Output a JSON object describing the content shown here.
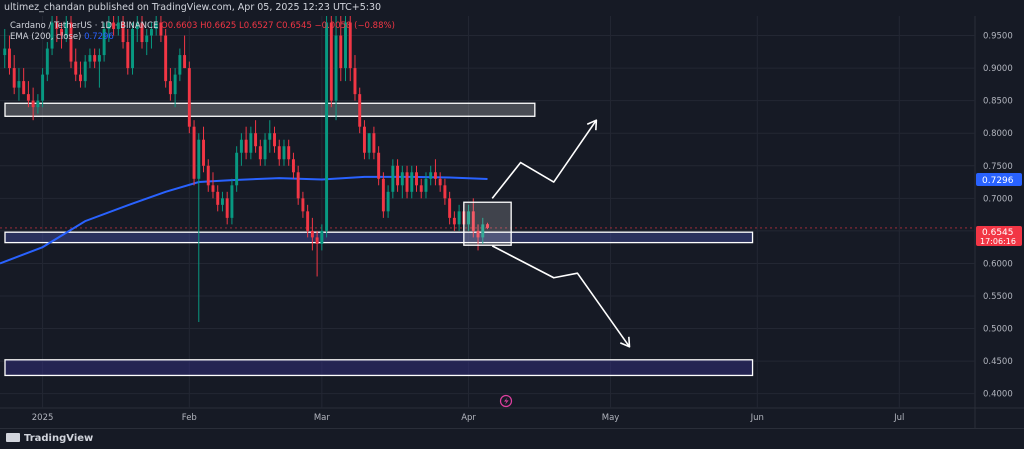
{
  "header": {
    "published": "ultimez_chandan published on TradingView.com, Apr 05, 2025 12:23 UTC+5:30"
  },
  "legend": {
    "symbol": "Cardano / TetherUS · 1D · BINANCE",
    "ohlc": "O0.6603 H0.6625 L0.6527 C0.6545 −0.0058 (−0.88%)",
    "ema_label": "EMA (200, close)",
    "ema_value": "0.7296"
  },
  "price_labels": {
    "current_price": "0.6545",
    "countdown": "17:06:16",
    "ema_price": "0.7296"
  },
  "footer": {
    "brand": "TradingView"
  },
  "colors": {
    "background": "#161a25",
    "grid": "#232733",
    "up": "#089981",
    "down": "#f23645",
    "ema": "#2962ff",
    "zone_border": "#ffffff"
  },
  "chart_data": {
    "type": "candlestick",
    "symbol": "Cardano / TetherUS",
    "timeframe": "1D",
    "exchange": "BINANCE",
    "y_ticks": [
      0.95,
      0.9,
      0.85,
      0.8,
      0.75,
      0.7,
      0.65,
      0.6,
      0.55,
      0.5,
      0.45,
      0.4
    ],
    "y_tick_labels": [
      "0.9500",
      "0.9000",
      "0.8500",
      "0.8000",
      "0.7500",
      "0.7000",
      "0.6500",
      "0.6000",
      "0.5500",
      "0.5000",
      "0.4500",
      "0.4000"
    ],
    "ylim": [
      0.378,
      0.98
    ],
    "x_ticks": [
      "2025",
      "Feb",
      "Mar",
      "Apr",
      "May",
      "Jun",
      "Jul"
    ],
    "x_tick_dates": [
      "2025-01-01",
      "2025-02-01",
      "2025-03-01",
      "2025-04-01",
      "2025-05-01",
      "2025-06-01",
      "2025-07-01"
    ],
    "xlim": [
      "2024-12-23",
      "2025-07-17"
    ],
    "candles": [
      {
        "date": "2024-12-24",
        "o": 0.92,
        "h": 0.96,
        "l": 0.9,
        "c": 0.93
      },
      {
        "date": "2024-12-25",
        "o": 0.93,
        "h": 0.95,
        "l": 0.89,
        "c": 0.9
      },
      {
        "date": "2024-12-26",
        "o": 0.9,
        "h": 0.92,
        "l": 0.86,
        "c": 0.87
      },
      {
        "date": "2024-12-27",
        "o": 0.87,
        "h": 0.9,
        "l": 0.85,
        "c": 0.88
      },
      {
        "date": "2024-12-28",
        "o": 0.88,
        "h": 0.9,
        "l": 0.86,
        "c": 0.86
      },
      {
        "date": "2024-12-29",
        "o": 0.86,
        "h": 0.88,
        "l": 0.84,
        "c": 0.85
      },
      {
        "date": "2024-12-30",
        "o": 0.85,
        "h": 0.87,
        "l": 0.82,
        "c": 0.84
      },
      {
        "date": "2024-12-31",
        "o": 0.84,
        "h": 0.86,
        "l": 0.83,
        "c": 0.85
      },
      {
        "date": "2025-01-01",
        "o": 0.85,
        "h": 0.9,
        "l": 0.84,
        "c": 0.89
      },
      {
        "date": "2025-01-02",
        "o": 0.89,
        "h": 0.94,
        "l": 0.88,
        "c": 0.93
      },
      {
        "date": "2025-01-03",
        "o": 0.93,
        "h": 0.98,
        "l": 0.92,
        "c": 0.97
      },
      {
        "date": "2025-01-04",
        "o": 0.97,
        "h": 0.98,
        "l": 0.94,
        "c": 0.96
      },
      {
        "date": "2025-01-05",
        "o": 0.96,
        "h": 0.97,
        "l": 0.93,
        "c": 0.95
      },
      {
        "date": "2025-01-06",
        "o": 0.95,
        "h": 0.98,
        "l": 0.94,
        "c": 0.97
      },
      {
        "date": "2025-01-07",
        "o": 0.97,
        "h": 0.98,
        "l": 0.9,
        "c": 0.91
      },
      {
        "date": "2025-01-08",
        "o": 0.91,
        "h": 0.93,
        "l": 0.88,
        "c": 0.89
      },
      {
        "date": "2025-01-09",
        "o": 0.89,
        "h": 0.91,
        "l": 0.87,
        "c": 0.88
      },
      {
        "date": "2025-01-10",
        "o": 0.88,
        "h": 0.92,
        "l": 0.87,
        "c": 0.91
      },
      {
        "date": "2025-01-11",
        "o": 0.91,
        "h": 0.93,
        "l": 0.9,
        "c": 0.92
      },
      {
        "date": "2025-01-12",
        "o": 0.92,
        "h": 0.93,
        "l": 0.9,
        "c": 0.91
      },
      {
        "date": "2025-01-13",
        "o": 0.91,
        "h": 0.93,
        "l": 0.87,
        "c": 0.92
      },
      {
        "date": "2025-01-14",
        "o": 0.92,
        "h": 0.97,
        "l": 0.91,
        "c": 0.96
      },
      {
        "date": "2025-01-15",
        "o": 0.96,
        "h": 0.98,
        "l": 0.94,
        "c": 0.97
      },
      {
        "date": "2025-01-16",
        "o": 0.97,
        "h": 0.98,
        "l": 0.95,
        "c": 0.96
      },
      {
        "date": "2025-01-17",
        "o": 0.96,
        "h": 0.98,
        "l": 0.95,
        "c": 0.97
      },
      {
        "date": "2025-01-18",
        "o": 0.97,
        "h": 0.98,
        "l": 0.93,
        "c": 0.94
      },
      {
        "date": "2025-01-19",
        "o": 0.94,
        "h": 0.96,
        "l": 0.89,
        "c": 0.9
      },
      {
        "date": "2025-01-20",
        "o": 0.9,
        "h": 0.97,
        "l": 0.89,
        "c": 0.96
      },
      {
        "date": "2025-01-21",
        "o": 0.96,
        "h": 0.98,
        "l": 0.94,
        "c": 0.97
      },
      {
        "date": "2025-01-22",
        "o": 0.97,
        "h": 0.98,
        "l": 0.93,
        "c": 0.94
      },
      {
        "date": "2025-01-23",
        "o": 0.94,
        "h": 0.96,
        "l": 0.92,
        "c": 0.95
      },
      {
        "date": "2025-01-24",
        "o": 0.95,
        "h": 0.97,
        "l": 0.93,
        "c": 0.96
      },
      {
        "date": "2025-01-25",
        "o": 0.96,
        "h": 0.98,
        "l": 0.95,
        "c": 0.97
      },
      {
        "date": "2025-01-26",
        "o": 0.97,
        "h": 0.98,
        "l": 0.94,
        "c": 0.95
      },
      {
        "date": "2025-01-27",
        "o": 0.95,
        "h": 0.96,
        "l": 0.87,
        "c": 0.88
      },
      {
        "date": "2025-01-28",
        "o": 0.88,
        "h": 0.9,
        "l": 0.85,
        "c": 0.86
      },
      {
        "date": "2025-01-29",
        "o": 0.86,
        "h": 0.9,
        "l": 0.84,
        "c": 0.89
      },
      {
        "date": "2025-01-30",
        "o": 0.89,
        "h": 0.93,
        "l": 0.88,
        "c": 0.92
      },
      {
        "date": "2025-01-31",
        "o": 0.92,
        "h": 0.95,
        "l": 0.9,
        "c": 0.9
      },
      {
        "date": "2025-02-01",
        "o": 0.9,
        "h": 0.91,
        "l": 0.8,
        "c": 0.81
      },
      {
        "date": "2025-02-02",
        "o": 0.81,
        "h": 0.82,
        "l": 0.72,
        "c": 0.73
      },
      {
        "date": "2025-02-03",
        "o": 0.73,
        "h": 0.8,
        "l": 0.51,
        "c": 0.79
      },
      {
        "date": "2025-02-04",
        "o": 0.79,
        "h": 0.81,
        "l": 0.74,
        "c": 0.75
      },
      {
        "date": "2025-02-05",
        "o": 0.75,
        "h": 0.76,
        "l": 0.71,
        "c": 0.72
      },
      {
        "date": "2025-02-06",
        "o": 0.72,
        "h": 0.74,
        "l": 0.7,
        "c": 0.71
      },
      {
        "date": "2025-02-07",
        "o": 0.71,
        "h": 0.72,
        "l": 0.68,
        "c": 0.69
      },
      {
        "date": "2025-02-08",
        "o": 0.69,
        "h": 0.71,
        "l": 0.68,
        "c": 0.7
      },
      {
        "date": "2025-02-09",
        "o": 0.7,
        "h": 0.71,
        "l": 0.66,
        "c": 0.67
      },
      {
        "date": "2025-02-10",
        "o": 0.67,
        "h": 0.73,
        "l": 0.66,
        "c": 0.72
      },
      {
        "date": "2025-02-11",
        "o": 0.72,
        "h": 0.78,
        "l": 0.71,
        "c": 0.77
      },
      {
        "date": "2025-02-12",
        "o": 0.77,
        "h": 0.8,
        "l": 0.75,
        "c": 0.79
      },
      {
        "date": "2025-02-13",
        "o": 0.79,
        "h": 0.81,
        "l": 0.76,
        "c": 0.77
      },
      {
        "date": "2025-02-14",
        "o": 0.77,
        "h": 0.81,
        "l": 0.76,
        "c": 0.8
      },
      {
        "date": "2025-02-15",
        "o": 0.8,
        "h": 0.82,
        "l": 0.77,
        "c": 0.78
      },
      {
        "date": "2025-02-16",
        "o": 0.78,
        "h": 0.79,
        "l": 0.75,
        "c": 0.76
      },
      {
        "date": "2025-02-17",
        "o": 0.76,
        "h": 0.8,
        "l": 0.75,
        "c": 0.79
      },
      {
        "date": "2025-02-18",
        "o": 0.79,
        "h": 0.82,
        "l": 0.77,
        "c": 0.8
      },
      {
        "date": "2025-02-19",
        "o": 0.8,
        "h": 0.81,
        "l": 0.77,
        "c": 0.78
      },
      {
        "date": "2025-02-20",
        "o": 0.78,
        "h": 0.79,
        "l": 0.75,
        "c": 0.76
      },
      {
        "date": "2025-02-21",
        "o": 0.76,
        "h": 0.79,
        "l": 0.75,
        "c": 0.78
      },
      {
        "date": "2025-02-22",
        "o": 0.78,
        "h": 0.79,
        "l": 0.75,
        "c": 0.76
      },
      {
        "date": "2025-02-23",
        "o": 0.76,
        "h": 0.77,
        "l": 0.73,
        "c": 0.74
      },
      {
        "date": "2025-02-24",
        "o": 0.74,
        "h": 0.75,
        "l": 0.69,
        "c": 0.7
      },
      {
        "date": "2025-02-25",
        "o": 0.7,
        "h": 0.71,
        "l": 0.67,
        "c": 0.68
      },
      {
        "date": "2025-02-26",
        "o": 0.68,
        "h": 0.69,
        "l": 0.64,
        "c": 0.65
      },
      {
        "date": "2025-02-27",
        "o": 0.65,
        "h": 0.67,
        "l": 0.62,
        "c": 0.64
      },
      {
        "date": "2025-02-28",
        "o": 0.64,
        "h": 0.65,
        "l": 0.58,
        "c": 0.63
      },
      {
        "date": "2025-03-01",
        "o": 0.63,
        "h": 0.66,
        "l": 0.62,
        "c": 0.65
      },
      {
        "date": "2025-03-02",
        "o": 0.65,
        "h": 0.98,
        "l": 0.64,
        "c": 0.97
      },
      {
        "date": "2025-03-03",
        "o": 0.97,
        "h": 0.98,
        "l": 0.84,
        "c": 0.85
      },
      {
        "date": "2025-03-04",
        "o": 0.85,
        "h": 0.98,
        "l": 0.82,
        "c": 0.95
      },
      {
        "date": "2025-03-05",
        "o": 0.95,
        "h": 0.98,
        "l": 0.88,
        "c": 0.9
      },
      {
        "date": "2025-03-06",
        "o": 0.9,
        "h": 0.98,
        "l": 0.88,
        "c": 0.97
      },
      {
        "date": "2025-03-07",
        "o": 0.97,
        "h": 0.98,
        "l": 0.88,
        "c": 0.9
      },
      {
        "date": "2025-03-08",
        "o": 0.9,
        "h": 0.92,
        "l": 0.85,
        "c": 0.86
      },
      {
        "date": "2025-03-09",
        "o": 0.86,
        "h": 0.87,
        "l": 0.8,
        "c": 0.81
      },
      {
        "date": "2025-03-10",
        "o": 0.81,
        "h": 0.82,
        "l": 0.76,
        "c": 0.77
      },
      {
        "date": "2025-03-11",
        "o": 0.77,
        "h": 0.8,
        "l": 0.76,
        "c": 0.8
      },
      {
        "date": "2025-03-12",
        "o": 0.8,
        "h": 0.81,
        "l": 0.76,
        "c": 0.77
      },
      {
        "date": "2025-03-13",
        "o": 0.77,
        "h": 0.78,
        "l": 0.72,
        "c": 0.73
      },
      {
        "date": "2025-03-14",
        "o": 0.73,
        "h": 0.74,
        "l": 0.67,
        "c": 0.68
      },
      {
        "date": "2025-03-15",
        "o": 0.68,
        "h": 0.72,
        "l": 0.67,
        "c": 0.71
      },
      {
        "date": "2025-03-16",
        "o": 0.71,
        "h": 0.76,
        "l": 0.7,
        "c": 0.75
      },
      {
        "date": "2025-03-17",
        "o": 0.75,
        "h": 0.76,
        "l": 0.71,
        "c": 0.72
      },
      {
        "date": "2025-03-18",
        "o": 0.72,
        "h": 0.75,
        "l": 0.7,
        "c": 0.74
      },
      {
        "date": "2025-03-19",
        "o": 0.74,
        "h": 0.75,
        "l": 0.7,
        "c": 0.71
      },
      {
        "date": "2025-03-20",
        "o": 0.71,
        "h": 0.75,
        "l": 0.7,
        "c": 0.74
      },
      {
        "date": "2025-03-21",
        "o": 0.74,
        "h": 0.75,
        "l": 0.71,
        "c": 0.72
      },
      {
        "date": "2025-03-22",
        "o": 0.72,
        "h": 0.73,
        "l": 0.7,
        "c": 0.71
      },
      {
        "date": "2025-03-23",
        "o": 0.71,
        "h": 0.74,
        "l": 0.7,
        "c": 0.73
      },
      {
        "date": "2025-03-24",
        "o": 0.73,
        "h": 0.75,
        "l": 0.72,
        "c": 0.74
      },
      {
        "date": "2025-03-25",
        "o": 0.74,
        "h": 0.76,
        "l": 0.72,
        "c": 0.73
      },
      {
        "date": "2025-03-26",
        "o": 0.73,
        "h": 0.74,
        "l": 0.71,
        "c": 0.72
      },
      {
        "date": "2025-03-27",
        "o": 0.72,
        "h": 0.73,
        "l": 0.69,
        "c": 0.7
      },
      {
        "date": "2025-03-28",
        "o": 0.7,
        "h": 0.71,
        "l": 0.66,
        "c": 0.67
      },
      {
        "date": "2025-03-29",
        "o": 0.67,
        "h": 0.68,
        "l": 0.65,
        "c": 0.66
      },
      {
        "date": "2025-03-30",
        "o": 0.66,
        "h": 0.69,
        "l": 0.65,
        "c": 0.68
      },
      {
        "date": "2025-03-31",
        "o": 0.68,
        "h": 0.69,
        "l": 0.65,
        "c": 0.66
      },
      {
        "date": "2025-04-01",
        "o": 0.66,
        "h": 0.69,
        "l": 0.65,
        "c": 0.68
      },
      {
        "date": "2025-04-02",
        "o": 0.68,
        "h": 0.7,
        "l": 0.64,
        "c": 0.65
      },
      {
        "date": "2025-04-03",
        "o": 0.65,
        "h": 0.66,
        "l": 0.62,
        "c": 0.64
      },
      {
        "date": "2025-04-04",
        "o": 0.64,
        "h": 0.67,
        "l": 0.63,
        "c": 0.66
      },
      {
        "date": "2025-04-05",
        "o": 0.6603,
        "h": 0.6625,
        "l": 0.6527,
        "c": 0.6545
      }
    ],
    "ema": {
      "name": "EMA (200, close)",
      "points": [
        {
          "date": "2024-12-23",
          "v": 0.6
        },
        {
          "date": "2025-01-01",
          "v": 0.625
        },
        {
          "date": "2025-01-10",
          "v": 0.665
        },
        {
          "date": "2025-01-20",
          "v": 0.692
        },
        {
          "date": "2025-01-27",
          "v": 0.71
        },
        {
          "date": "2025-02-03",
          "v": 0.725
        },
        {
          "date": "2025-02-10",
          "v": 0.728
        },
        {
          "date": "2025-02-20",
          "v": 0.731
        },
        {
          "date": "2025-03-01",
          "v": 0.729
        },
        {
          "date": "2025-03-10",
          "v": 0.733
        },
        {
          "date": "2025-03-20",
          "v": 0.733
        },
        {
          "date": "2025-03-28",
          "v": 0.732
        },
        {
          "date": "2025-04-05",
          "v": 0.7296
        }
      ]
    },
    "zones": [
      {
        "name": "resistance-zone",
        "date_from": "2024-12-23",
        "date_to": "2025-04-15",
        "y_bottom": 0.826,
        "y_top": 0.846
      },
      {
        "name": "support-zone",
        "date_from": "2024-12-23",
        "date_to": "2025-05-31",
        "y_bottom": 0.632,
        "y_top": 0.648
      },
      {
        "name": "target-zone",
        "date_from": "2024-12-23",
        "date_to": "2025-05-31",
        "y_bottom": 0.428,
        "y_top": 0.452
      },
      {
        "name": "consolidation-box",
        "date_from": "2025-03-31",
        "date_to": "2025-04-10",
        "y_bottom": 0.628,
        "y_top": 0.694
      }
    ],
    "arrows": [
      {
        "name": "bullish-arrow",
        "points": [
          [
            "2025-04-06",
            0.7
          ],
          [
            "2025-04-12",
            0.755
          ],
          [
            "2025-04-19",
            0.725
          ],
          [
            "2025-04-28",
            0.82
          ]
        ]
      },
      {
        "name": "bearish-arrow",
        "points": [
          [
            "2025-04-06",
            0.627
          ],
          [
            "2025-04-19",
            0.578
          ],
          [
            "2025-04-24",
            0.585
          ],
          [
            "2025-05-05",
            0.472
          ]
        ]
      }
    ]
  }
}
